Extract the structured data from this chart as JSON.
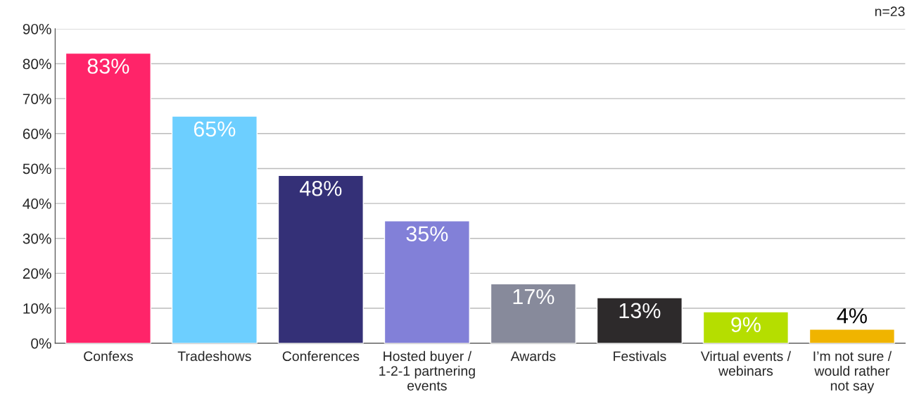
{
  "chart_data": {
    "type": "bar",
    "categories": [
      "Confexs",
      "Tradeshows",
      "Conferences",
      "Hosted buyer /\n1-2-1 partnering\nevents",
      "Awards",
      "Festivals",
      "Virtual events /\nwebinars",
      "I’m not sure /\nwould rather\nnot say"
    ],
    "values": [
      83,
      65,
      48,
      35,
      17,
      13,
      9,
      4
    ],
    "colors": [
      "#ff2469",
      "#6dcfff",
      "#343077",
      "#8280d8",
      "#878a9b",
      "#2d2a2b",
      "#b5de00",
      "#f0b400"
    ],
    "value_labels": [
      "83%",
      "65%",
      "48%",
      "35%",
      "17%",
      "13%",
      "9%",
      "4%"
    ],
    "ylim": [
      0,
      90
    ],
    "yticks": [
      {
        "value": 0,
        "label": "0%"
      },
      {
        "value": 10,
        "label": "10%"
      },
      {
        "value": 20,
        "label": "20%"
      },
      {
        "value": 30,
        "label": "30%"
      },
      {
        "value": 40,
        "label": "40%"
      },
      {
        "value": 50,
        "label": "50%"
      },
      {
        "value": 60,
        "label": "60%"
      },
      {
        "value": 70,
        "label": "70%"
      },
      {
        "value": 80,
        "label": "80%"
      },
      {
        "value": 90,
        "label": "90%"
      }
    ],
    "grid": "y",
    "annotations": [
      "n=23"
    ]
  }
}
